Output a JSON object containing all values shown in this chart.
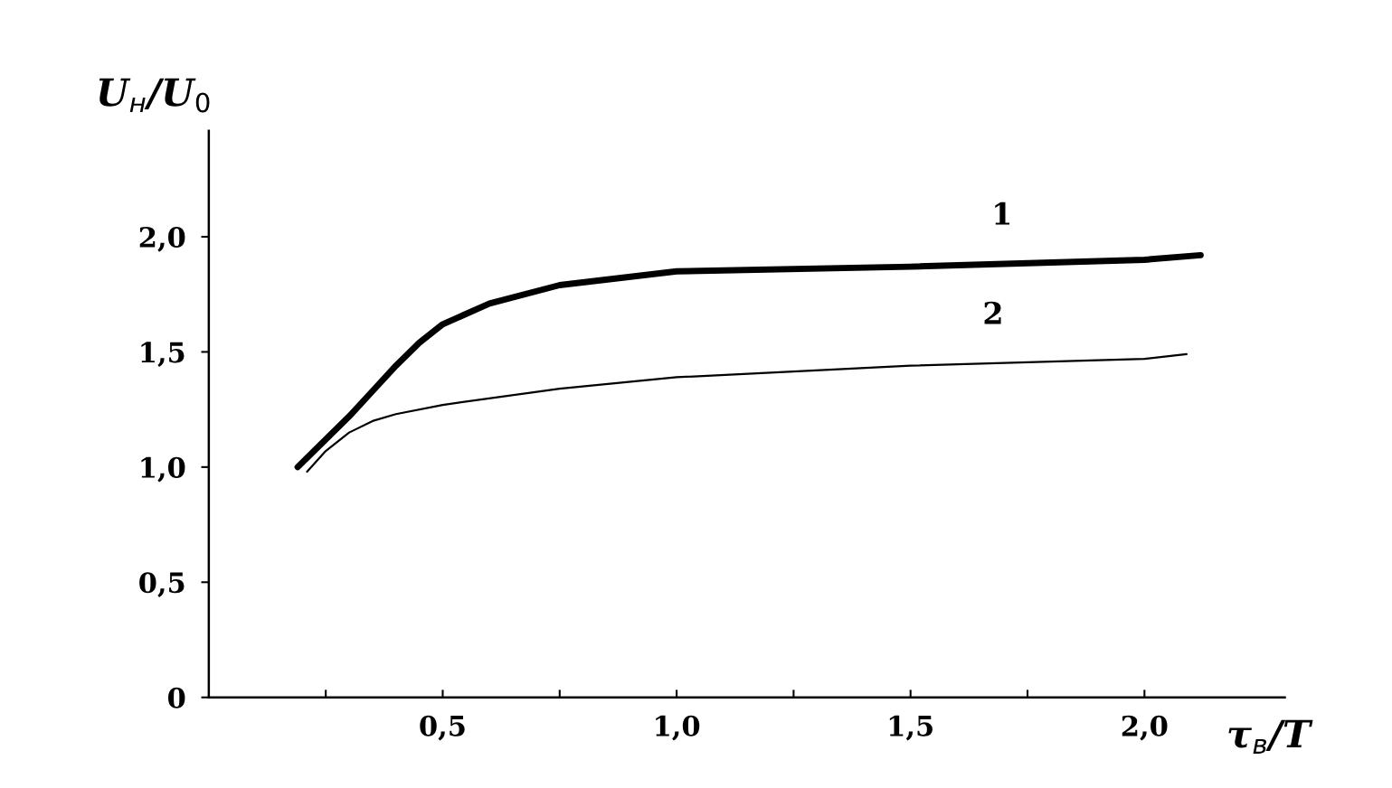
{
  "chart_data": {
    "type": "line",
    "xlabel": "τ$_{в}$/T",
    "ylabel": "U$_{н}$/U$_{0}$",
    "xlim": [
      0,
      2.3
    ],
    "ylim": [
      0,
      2.46
    ],
    "xticks": [
      {
        "value": 0.25,
        "label": null
      },
      {
        "value": 0.5,
        "label": "0,5"
      },
      {
        "value": 0.75,
        "label": null
      },
      {
        "value": 1.0,
        "label": "1,0"
      },
      {
        "value": 1.25,
        "label": null
      },
      {
        "value": 1.5,
        "label": "1,5"
      },
      {
        "value": 1.75,
        "label": null
      },
      {
        "value": 2.0,
        "label": "2,0"
      }
    ],
    "yticks": [
      0,
      {
        "value": 0.5,
        "label": "0,5"
      },
      {
        "value": 1.0,
        "label": "1,0"
      },
      {
        "value": 1.5,
        "label": "1,5"
      },
      {
        "value": 2.0,
        "label": "2,0"
      }
    ],
    "series": [
      {
        "name": "1",
        "color": "#000000",
        "x": [
          0.19,
          0.25,
          0.3,
          0.35,
          0.4,
          0.45,
          0.5,
          0.6,
          0.75,
          1.0,
          1.5,
          2.0,
          2.12
        ],
        "values": [
          1.0,
          1.12,
          1.22,
          1.33,
          1.44,
          1.54,
          1.62,
          1.71,
          1.79,
          1.85,
          1.87,
          1.9,
          1.92
        ]
      },
      {
        "name": "2",
        "color": "#000000",
        "x": [
          0.21,
          0.25,
          0.3,
          0.35,
          0.4,
          0.5,
          0.75,
          1.0,
          1.5,
          2.0,
          2.09
        ],
        "values": [
          0.98,
          1.07,
          1.15,
          1.2,
          1.23,
          1.27,
          1.34,
          1.39,
          1.44,
          1.47,
          1.49
        ]
      }
    ],
    "grid": false,
    "legend": false,
    "marker": "none",
    "line_style": "solid"
  }
}
